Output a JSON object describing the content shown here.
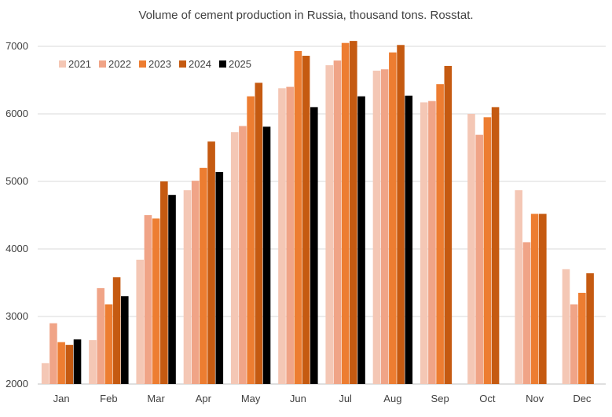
{
  "chart_data": {
    "type": "bar",
    "title": "Volume of cement production in Russia, thousand tons. Rosstat.",
    "xlabel": "",
    "ylabel": "",
    "ylim": [
      2000,
      7000
    ],
    "yticks": [
      2000,
      3000,
      4000,
      5000,
      6000,
      7000
    ],
    "grid": true,
    "legend_position": "top-left",
    "categories": [
      "Jan",
      "Feb",
      "Mar",
      "Apr",
      "May",
      "Jun",
      "Jul",
      "Aug",
      "Sep",
      "Oct",
      "Nov",
      "Dec"
    ],
    "series": [
      {
        "name": "2021",
        "color": "#f4c7b5",
        "values": [
          2310,
          2650,
          3840,
          4870,
          5730,
          6380,
          6720,
          6640,
          6170,
          6000,
          4870,
          3700
        ]
      },
      {
        "name": "2022",
        "color": "#f0a487",
        "values": [
          2900,
          3420,
          4500,
          5010,
          5820,
          6400,
          6790,
          6660,
          6190,
          5690,
          4100,
          3180
        ]
      },
      {
        "name": "2023",
        "color": "#ed7d31",
        "values": [
          2620,
          3180,
          4450,
          5200,
          6260,
          6930,
          7050,
          6910,
          6440,
          5950,
          4520,
          3350
        ]
      },
      {
        "name": "2024",
        "color": "#c55a11",
        "values": [
          2580,
          3580,
          5000,
          5590,
          6460,
          6860,
          7080,
          7020,
          6710,
          6100,
          4520,
          3640
        ]
      },
      {
        "name": "2025",
        "color": "#000000",
        "values": [
          2660,
          3300,
          4800,
          5140,
          5810,
          6100,
          6260,
          6270,
          null,
          null,
          null,
          null
        ]
      }
    ]
  }
}
